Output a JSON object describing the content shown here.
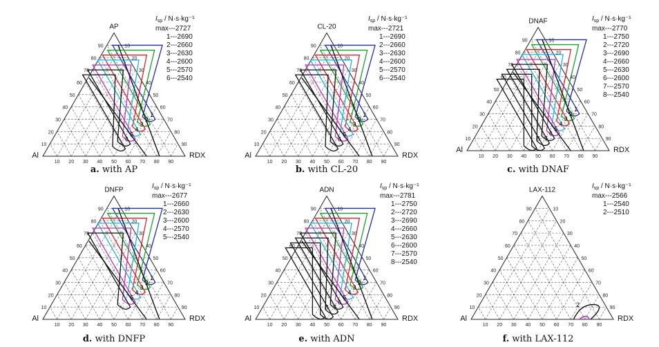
{
  "colors": {
    "frame": "#222222",
    "grid": "#555555",
    "max": "#1f2ea8",
    "c1": "#1aa02a",
    "c2": "#e0202a",
    "c3": "#20b0e0",
    "c4": "#c030c8",
    "c5": "#111111",
    "c6": "#111111",
    "c7": "#111111",
    "c8": "#111111"
  },
  "chart_data": [
    {
      "type": "ternary-contour",
      "panel_label": "a.",
      "caption": "with AP",
      "title": "AP",
      "left_corner": "Al",
      "right_corner": "RDX",
      "legend_unit": "I_sp / N·s·kg⁻¹",
      "ticks": [
        "10",
        "20",
        "30",
        "40",
        "50",
        "60",
        "70",
        "80",
        "90"
      ],
      "levels": [
        {
          "name": "max",
          "value": 2727
        },
        {
          "name": "1",
          "value": 2690
        },
        {
          "name": "2",
          "value": 2660
        },
        {
          "name": "3",
          "value": 2630
        },
        {
          "name": "4",
          "value": 2600
        },
        {
          "name": "5",
          "value": 2570
        },
        {
          "name": "6",
          "value": 2540
        }
      ]
    },
    {
      "type": "ternary-contour",
      "panel_label": "b.",
      "caption": "with CL-20",
      "title": "CL-20",
      "left_corner": "Al",
      "right_corner": "RDX",
      "legend_unit": "I_sp / N·s·kg⁻¹",
      "ticks": [
        "10",
        "20",
        "30",
        "40",
        "50",
        "60",
        "70",
        "80",
        "90"
      ],
      "levels": [
        {
          "name": "max",
          "value": 2721
        },
        {
          "name": "1",
          "value": 2690
        },
        {
          "name": "2",
          "value": 2660
        },
        {
          "name": "3",
          "value": 2630
        },
        {
          "name": "4",
          "value": 2600
        },
        {
          "name": "5",
          "value": 2570
        },
        {
          "name": "6",
          "value": 2540
        }
      ]
    },
    {
      "type": "ternary-contour",
      "panel_label": "c.",
      "caption": "with DNAF",
      "title": "DNAF",
      "left_corner": "Al",
      "right_corner": "RDX",
      "legend_unit": "I_sp / N·s·kg⁻¹",
      "ticks": [
        "10",
        "20",
        "30",
        "40",
        "50",
        "60",
        "70",
        "80",
        "90"
      ],
      "levels": [
        {
          "name": "max",
          "value": 2770
        },
        {
          "name": "1",
          "value": 2750
        },
        {
          "name": "2",
          "value": 2720
        },
        {
          "name": "3",
          "value": 2690
        },
        {
          "name": "4",
          "value": 2660
        },
        {
          "name": "5",
          "value": 2630
        },
        {
          "name": "6",
          "value": 2600
        },
        {
          "name": "7",
          "value": 2570
        },
        {
          "name": "8",
          "value": 2540
        }
      ]
    },
    {
      "type": "ternary-contour",
      "panel_label": "d.",
      "caption": "with DNFP",
      "title": "DNFP",
      "left_corner": "Al",
      "right_corner": "RDX",
      "legend_unit": "I_sp / N·s·kg⁻¹",
      "ticks": [
        "10",
        "20",
        "30",
        "40",
        "50",
        "60",
        "70",
        "80",
        "90"
      ],
      "levels": [
        {
          "name": "max",
          "value": 2677
        },
        {
          "name": "1",
          "value": 2660
        },
        {
          "name": "2",
          "value": 2630
        },
        {
          "name": "3",
          "value": 2600
        },
        {
          "name": "4",
          "value": 2570
        },
        {
          "name": "5",
          "value": 2540
        }
      ]
    },
    {
      "type": "ternary-contour",
      "panel_label": "e.",
      "caption": "with ADN",
      "title": "ADN",
      "left_corner": "Al",
      "right_corner": "RDX",
      "legend_unit": "I_sp / N·s·kg⁻¹",
      "ticks": [
        "10",
        "20",
        "30",
        "40",
        "50",
        "60",
        "70",
        "80",
        "90"
      ],
      "levels": [
        {
          "name": "max",
          "value": 2781
        },
        {
          "name": "1",
          "value": 2750
        },
        {
          "name": "2",
          "value": 2720
        },
        {
          "name": "3",
          "value": 2690
        },
        {
          "name": "4",
          "value": 2660
        },
        {
          "name": "5",
          "value": 2630
        },
        {
          "name": "6",
          "value": 2600
        },
        {
          "name": "7",
          "value": 2570
        },
        {
          "name": "8",
          "value": 2540
        }
      ]
    },
    {
      "type": "ternary-contour",
      "panel_label": "f.",
      "caption": "with LAX-112",
      "title": "LAX-112",
      "left_corner": "Al",
      "right_corner": "RDX",
      "legend_unit": "I_sp / N·s·kg⁻¹",
      "ticks": [
        "10",
        "20",
        "30",
        "40",
        "50",
        "60",
        "70",
        "80",
        "90"
      ],
      "levels": [
        {
          "name": "max",
          "value": 2566
        },
        {
          "name": "1",
          "value": 2540
        },
        {
          "name": "2",
          "value": 2510
        }
      ]
    }
  ]
}
